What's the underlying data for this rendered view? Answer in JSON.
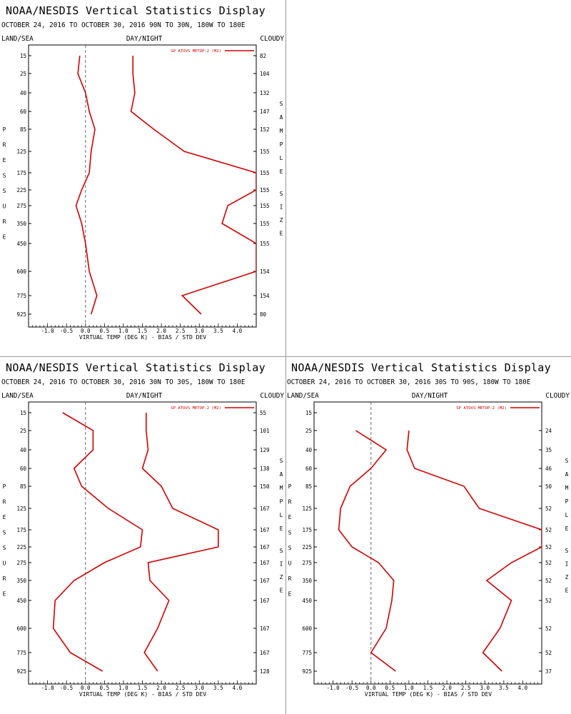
{
  "panel_header": {
    "title": "NOAA/NESDIS Vertical Statistics Display",
    "land_sea": "LAND/SEA",
    "day_night": "DAY/NIGHT",
    "cloudy": "CLOUDY",
    "pressure_label": "PRESSURE",
    "sample_label": "SAMPLE",
    "size_label": "SIZE"
  },
  "legend_label": "SP ATOVS METOP-2 (M2)",
  "colors": {
    "series": "#d40000",
    "zero_line": "#666666"
  },
  "chart_data": [
    {
      "type": "line",
      "subtitle": "OCTOBER 24, 2016 TO OCTOBER 30, 2016  90N TO 30N, 180W TO 180E",
      "xlabel": "VIRTUAL TEMP (DEG K) - BIAS / STD DEV",
      "xlim": [
        -1.5,
        4.5
      ],
      "xticks": [
        "-1.0",
        "-0.5",
        "0.0",
        "0.5",
        "1.0",
        "1.5",
        "2.0",
        "2.5",
        "3.0",
        "3.5",
        "4.0"
      ],
      "pressure_levels": [
        "15",
        "25",
        "40",
        "60",
        "85",
        "125",
        "175",
        "225",
        "275",
        "350",
        "450",
        "600",
        "775",
        "925"
      ],
      "sample_size": [
        "82",
        "104",
        "132",
        "147",
        "152",
        "155",
        "155",
        "155",
        "155",
        "155",
        "155",
        "154",
        "154",
        "80"
      ],
      "series": [
        {
          "name": "bias",
          "values": [
            -0.15,
            -0.2,
            0.0,
            0.1,
            0.25,
            0.15,
            0.1,
            -0.1,
            -0.25,
            -0.1,
            0.0,
            0.1,
            0.3,
            0.15
          ]
        },
        {
          "name": "std_dev",
          "values": [
            1.25,
            1.25,
            1.3,
            1.2,
            1.8,
            2.6,
            4.5,
            4.5,
            3.75,
            3.6,
            4.5,
            4.5,
            2.55,
            3.05
          ]
        }
      ]
    },
    {
      "type": "line",
      "subtitle": "OCTOBER 24, 2016 TO OCTOBER 30, 2016  30N TO 30S, 180W TO 180E",
      "xlabel": "VIRTUAL TEMP (DEG K) - BIAS / STD DEV",
      "xlim": [
        -1.5,
        4.5
      ],
      "xticks": [
        "-1.0",
        "-0.5",
        "0.0",
        "0.5",
        "1.0",
        "1.5",
        "2.0",
        "2.5",
        "3.0",
        "3.5",
        "4.0"
      ],
      "pressure_levels": [
        "15",
        "25",
        "40",
        "60",
        "85",
        "125",
        "175",
        "225",
        "275",
        "350",
        "450",
        "600",
        "775",
        "925"
      ],
      "sample_size": [
        "55",
        "101",
        "129",
        "138",
        "150",
        "167",
        "167",
        "167",
        "167",
        "167",
        "167",
        "167",
        "167",
        "128"
      ],
      "series": [
        {
          "name": "bias",
          "values": [
            -0.6,
            0.2,
            0.2,
            -0.3,
            -0.1,
            0.6,
            1.5,
            1.45,
            0.5,
            -0.3,
            -0.8,
            -0.85,
            -0.4,
            0.45
          ]
        },
        {
          "name": "std_dev",
          "values": [
            1.6,
            1.6,
            1.65,
            1.5,
            2.0,
            2.3,
            3.5,
            3.5,
            1.65,
            1.7,
            2.2,
            1.9,
            1.55,
            1.9
          ]
        }
      ]
    },
    {
      "type": "line",
      "subtitle": "OCTOBER 24, 2016 TO OCTOBER 30, 2016  30S TO 90S, 180W TO 180E",
      "xlabel": "VIRTUAL TEMP (DEG K) - BIAS / STD DEV",
      "xlim": [
        -1.5,
        4.5
      ],
      "xticks": [
        "-1.0",
        "-0.5",
        "0.0",
        "0.5",
        "1.0",
        "1.5",
        "2.0",
        "2.5",
        "3.0",
        "3.5",
        "4.0"
      ],
      "pressure_levels": [
        "15",
        "25",
        "40",
        "60",
        "85",
        "125",
        "175",
        "225",
        "275",
        "350",
        "450",
        "600",
        "775",
        "925"
      ],
      "sample_size": [
        "",
        "24",
        "35",
        "46",
        "50",
        "52",
        "52",
        "52",
        "52",
        "52",
        "52",
        "52",
        "52",
        "37"
      ],
      "series": [
        {
          "name": "bias",
          "values": [
            null,
            -0.4,
            0.4,
            0.0,
            -0.55,
            -0.8,
            -0.85,
            -0.5,
            0.2,
            0.6,
            0.55,
            0.4,
            0.0,
            0.65
          ]
        },
        {
          "name": "std_dev",
          "values": [
            null,
            1.0,
            0.95,
            1.15,
            2.45,
            2.85,
            4.5,
            4.5,
            3.7,
            3.05,
            3.7,
            3.4,
            2.95,
            3.45
          ]
        }
      ]
    }
  ]
}
